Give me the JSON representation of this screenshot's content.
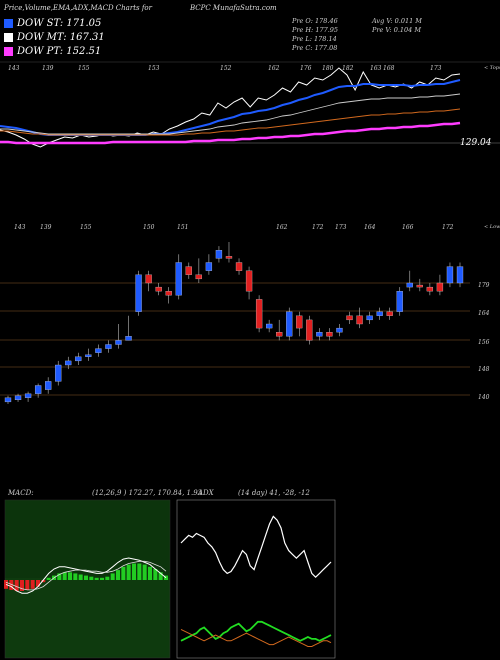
{
  "header": {
    "left": "Price,Volume,EMA,ADX,MACD Charts for",
    "center": "BCPC MunafaSutra.com"
  },
  "legend": [
    {
      "label": "DOW ST: 171.05",
      "color": "#1f5bff"
    },
    {
      "label": "DOW MT: 167.31",
      "color": "#ffffff"
    },
    {
      "label": "DOW PT: 152.51",
      "color": "#ff3cff"
    }
  ],
  "stats": {
    "prev_open": "Pre   O: 178.46",
    "prev_high": "Pre   H: 177.95",
    "prev_low": "Pre   L: 178.14",
    "prev_close": "Pre   C: 177.08",
    "avg_vol": "Avg V: 0.011 M",
    "prev_vol": "Pre   V: 0.104   M"
  },
  "chart_data": [
    {
      "type": "line",
      "name": "ema-panel",
      "top_labels": [
        "143",
        "139",
        "155",
        "153",
        "152",
        "162",
        "176",
        "180",
        "182",
        "163",
        "168",
        "173"
      ],
      "top_right_label": "< Tops",
      "price_label": "129.04",
      "series": [
        {
          "name": "price",
          "color": "#ffffff",
          "values": [
            120,
            118,
            115,
            111,
            106,
            103,
            107,
            110,
            113,
            112,
            115,
            113,
            114,
            116,
            114,
            115,
            114,
            117,
            115,
            118,
            116,
            121,
            124,
            128,
            131,
            137,
            135,
            147,
            142,
            148,
            152,
            143,
            152,
            150,
            155,
            162,
            158,
            168,
            165,
            172,
            170,
            175,
            182,
            175,
            160,
            178,
            165,
            162,
            165,
            163,
            166,
            162,
            168,
            165,
            172,
            170,
            175,
            176
          ]
        },
        {
          "name": "ema-short",
          "color": "#1f5bff",
          "values": [
            124,
            123,
            122,
            120,
            118,
            116,
            115,
            115,
            115,
            115,
            115,
            115,
            115,
            115,
            115,
            115,
            115,
            115,
            115,
            116,
            116,
            117,
            118,
            120,
            122,
            124,
            126,
            129,
            131,
            133,
            136,
            137,
            139,
            140,
            142,
            145,
            147,
            150,
            152,
            155,
            157,
            160,
            163,
            164,
            164,
            166,
            166,
            165,
            165,
            165,
            165,
            164,
            165,
            165,
            166,
            166,
            168,
            170
          ]
        },
        {
          "name": "ema-medium",
          "color": "#cccccc",
          "values": [
            121,
            121,
            120,
            119,
            118,
            117,
            116,
            116,
            116,
            116,
            116,
            116,
            116,
            116,
            116,
            116,
            116,
            116,
            116,
            116,
            116,
            116,
            117,
            118,
            119,
            120,
            121,
            123,
            124,
            125,
            127,
            128,
            129,
            130,
            132,
            134,
            135,
            137,
            139,
            141,
            143,
            145,
            147,
            148,
            149,
            150,
            151,
            151,
            152,
            152,
            152,
            152,
            153,
            153,
            154,
            154,
            155,
            156
          ]
        },
        {
          "name": "ema-long",
          "color": "#d2691e",
          "values": [
            119,
            119,
            118,
            117,
            116,
            116,
            115,
            115,
            115,
            115,
            115,
            115,
            115,
            115,
            115,
            115,
            115,
            115,
            115,
            115,
            115,
            115,
            115,
            116,
            116,
            117,
            117,
            118,
            119,
            119,
            120,
            121,
            122,
            122,
            123,
            124,
            125,
            126,
            127,
            128,
            129,
            130,
            131,
            132,
            133,
            134,
            135,
            135,
            136,
            136,
            137,
            137,
            138,
            138,
            139,
            139,
            140,
            141
          ]
        },
        {
          "name": "dow-pt",
          "color": "#ff3cff",
          "values": [
            108,
            108,
            107,
            107,
            107,
            107,
            107,
            107,
            107,
            107,
            107,
            107,
            107,
            107,
            108,
            108,
            108,
            108,
            108,
            108,
            108,
            108,
            108,
            108,
            109,
            109,
            109,
            110,
            110,
            110,
            111,
            111,
            112,
            112,
            113,
            113,
            114,
            114,
            115,
            116,
            116,
            117,
            118,
            119,
            119,
            120,
            121,
            121,
            122,
            122,
            123,
            123,
            124,
            124,
            125,
            126,
            126,
            127
          ]
        }
      ]
    },
    {
      "type": "candlestick",
      "name": "price-panel",
      "top_labels": [
        "143",
        "139",
        "155",
        "150",
        "151",
        "162",
        "172",
        "173",
        "164",
        "166",
        "172"
      ],
      "top_right_label": "< Lows",
      "y_ticks": [
        179,
        164,
        156,
        148,
        140
      ],
      "candles": [
        {
          "o": 150,
          "c": 151,
          "h": 151.5,
          "l": 149.5,
          "up": true
        },
        {
          "o": 150.5,
          "c": 151.5,
          "h": 152,
          "l": 150,
          "up": true
        },
        {
          "o": 151,
          "c": 152,
          "h": 152.5,
          "l": 150,
          "up": true
        },
        {
          "o": 152,
          "c": 154,
          "h": 154.5,
          "l": 151,
          "up": true
        },
        {
          "o": 153,
          "c": 155,
          "h": 156,
          "l": 152,
          "up": true
        },
        {
          "o": 155,
          "c": 159,
          "h": 160,
          "l": 154,
          "up": true
        },
        {
          "o": 159,
          "c": 160,
          "h": 161,
          "l": 158,
          "up": true
        },
        {
          "o": 160,
          "c": 161,
          "h": 162,
          "l": 159,
          "up": true
        },
        {
          "o": 161,
          "c": 161.5,
          "h": 163,
          "l": 160,
          "up": true
        },
        {
          "o": 162,
          "c": 163,
          "h": 164,
          "l": 161,
          "up": true
        },
        {
          "o": 163,
          "c": 164,
          "h": 165,
          "l": 162,
          "up": true
        },
        {
          "o": 164,
          "c": 165,
          "h": 169,
          "l": 163,
          "up": true
        },
        {
          "o": 165,
          "c": 166,
          "h": 171,
          "l": 165,
          "up": true
        },
        {
          "o": 172,
          "c": 181,
          "h": 182,
          "l": 171,
          "up": true
        },
        {
          "o": 181,
          "c": 179,
          "h": 182,
          "l": 177,
          "up": false
        },
        {
          "o": 178,
          "c": 177,
          "h": 179,
          "l": 176,
          "up": false
        },
        {
          "o": 177,
          "c": 176,
          "h": 178,
          "l": 174,
          "up": false
        },
        {
          "o": 176,
          "c": 184,
          "h": 186,
          "l": 175,
          "up": true
        },
        {
          "o": 183,
          "c": 181,
          "h": 184,
          "l": 180,
          "up": false
        },
        {
          "o": 181,
          "c": 180,
          "h": 185,
          "l": 179,
          "up": false
        },
        {
          "o": 182,
          "c": 184,
          "h": 186,
          "l": 181,
          "up": true
        },
        {
          "o": 185,
          "c": 187,
          "h": 188,
          "l": 184,
          "up": true
        },
        {
          "o": 185,
          "c": 185.5,
          "h": 189,
          "l": 184,
          "up": false
        },
        {
          "o": 184,
          "c": 182,
          "h": 185,
          "l": 181,
          "up": false
        },
        {
          "o": 182,
          "c": 177,
          "h": 183,
          "l": 175,
          "up": false
        },
        {
          "o": 175,
          "c": 168,
          "h": 176,
          "l": 167,
          "up": false
        },
        {
          "o": 169,
          "c": 168,
          "h": 170,
          "l": 167,
          "up": true
        },
        {
          "o": 167,
          "c": 166,
          "h": 170,
          "l": 165,
          "up": false
        },
        {
          "o": 166,
          "c": 172,
          "h": 173,
          "l": 165,
          "up": true
        },
        {
          "o": 171,
          "c": 168,
          "h": 172,
          "l": 166,
          "up": false
        },
        {
          "o": 170,
          "c": 165,
          "h": 171,
          "l": 164,
          "up": false
        },
        {
          "o": 166,
          "c": 167,
          "h": 168,
          "l": 165,
          "up": true
        },
        {
          "o": 167,
          "c": 166,
          "h": 168,
          "l": 165,
          "up": false
        },
        {
          "o": 167,
          "c": 168,
          "h": 169,
          "l": 166,
          "up": true
        },
        {
          "o": 171,
          "c": 170,
          "h": 172,
          "l": 169,
          "up": false
        },
        {
          "o": 171,
          "c": 169,
          "h": 173,
          "l": 168,
          "up": false
        },
        {
          "o": 170,
          "c": 171,
          "h": 172,
          "l": 169,
          "up": true
        },
        {
          "o": 171,
          "c": 172,
          "h": 173,
          "l": 170,
          "up": true
        },
        {
          "o": 172,
          "c": 171,
          "h": 173,
          "l": 170,
          "up": false
        },
        {
          "o": 172,
          "c": 177,
          "h": 178,
          "l": 171,
          "up": true
        },
        {
          "o": 178,
          "c": 179,
          "h": 182,
          "l": 177,
          "up": true
        },
        {
          "o": 178,
          "c": 178.5,
          "h": 180,
          "l": 177,
          "up": false
        },
        {
          "o": 178,
          "c": 177,
          "h": 179,
          "l": 176,
          "up": false
        },
        {
          "o": 177,
          "c": 179,
          "h": 181,
          "l": 176,
          "up": false
        },
        {
          "o": 179,
          "c": 183,
          "h": 184,
          "l": 178,
          "up": true
        },
        {
          "o": 179,
          "c": 183,
          "h": 184,
          "l": 178,
          "up": true
        }
      ]
    },
    {
      "type": "line",
      "name": "macd-panel",
      "title": "MACD:",
      "params": "(12,26,9 ) 172.27,  170.84,  1.93",
      "histogram": [
        -4,
        -4.5,
        -5,
        -5,
        -4.5,
        -4,
        -3,
        -1,
        1,
        2,
        3,
        3.5,
        3.5,
        3,
        2.5,
        2,
        1.5,
        1,
        1,
        1.5,
        3,
        4.5,
        6,
        7,
        7.5,
        7.5,
        7,
        6,
        5,
        3.5,
        2
      ],
      "macd": [
        -2,
        -3,
        -5,
        -6,
        -6,
        -5,
        -3,
        0,
        3,
        5,
        6,
        6,
        5.5,
        5,
        4.5,
        4,
        3.5,
        3,
        3,
        4,
        6,
        8,
        9.5,
        10,
        9.5,
        9,
        8,
        7,
        5,
        3,
        1
      ],
      "signal": [
        -1,
        -2,
        -3,
        -4,
        -4.5,
        -4.5,
        -4,
        -3,
        -1,
        1,
        2.5,
        3.5,
        4,
        4.5,
        4.5,
        4.5,
        4,
        4,
        3.5,
        3.5,
        4,
        5,
        6.5,
        7.5,
        8,
        8.5,
        8.5,
        8,
        7,
        6,
        4
      ]
    },
    {
      "type": "line",
      "name": "adx-panel",
      "title": "ADX",
      "params": "(14 day) 41,  -28,  -12",
      "adx": [
        30,
        32,
        34,
        33,
        35,
        34,
        33,
        30,
        28,
        25,
        20,
        16,
        14,
        15,
        18,
        22,
        26,
        24,
        18,
        16,
        22,
        28,
        34,
        40,
        44,
        42,
        38,
        30,
        26,
        24,
        22,
        24,
        26,
        20,
        14,
        12,
        14,
        16,
        18,
        20
      ],
      "plus_di": [
        8,
        9,
        10,
        11,
        12,
        14,
        15,
        13,
        11,
        9,
        10,
        12,
        13,
        15,
        16,
        17,
        15,
        13,
        14,
        16,
        18,
        18,
        17,
        16,
        15,
        14,
        13,
        12,
        11,
        10,
        9,
        8,
        9,
        10,
        9,
        9,
        8,
        9,
        10,
        11
      ],
      "minus_di": [
        14,
        13,
        12,
        11,
        10,
        9,
        8,
        9,
        10,
        11,
        10,
        9,
        8,
        8,
        9,
        10,
        11,
        12,
        11,
        10,
        9,
        8,
        7,
        6,
        6,
        7,
        8,
        9,
        10,
        9,
        8,
        7,
        6,
        5,
        5,
        6,
        7,
        8,
        8,
        7
      ]
    }
  ]
}
